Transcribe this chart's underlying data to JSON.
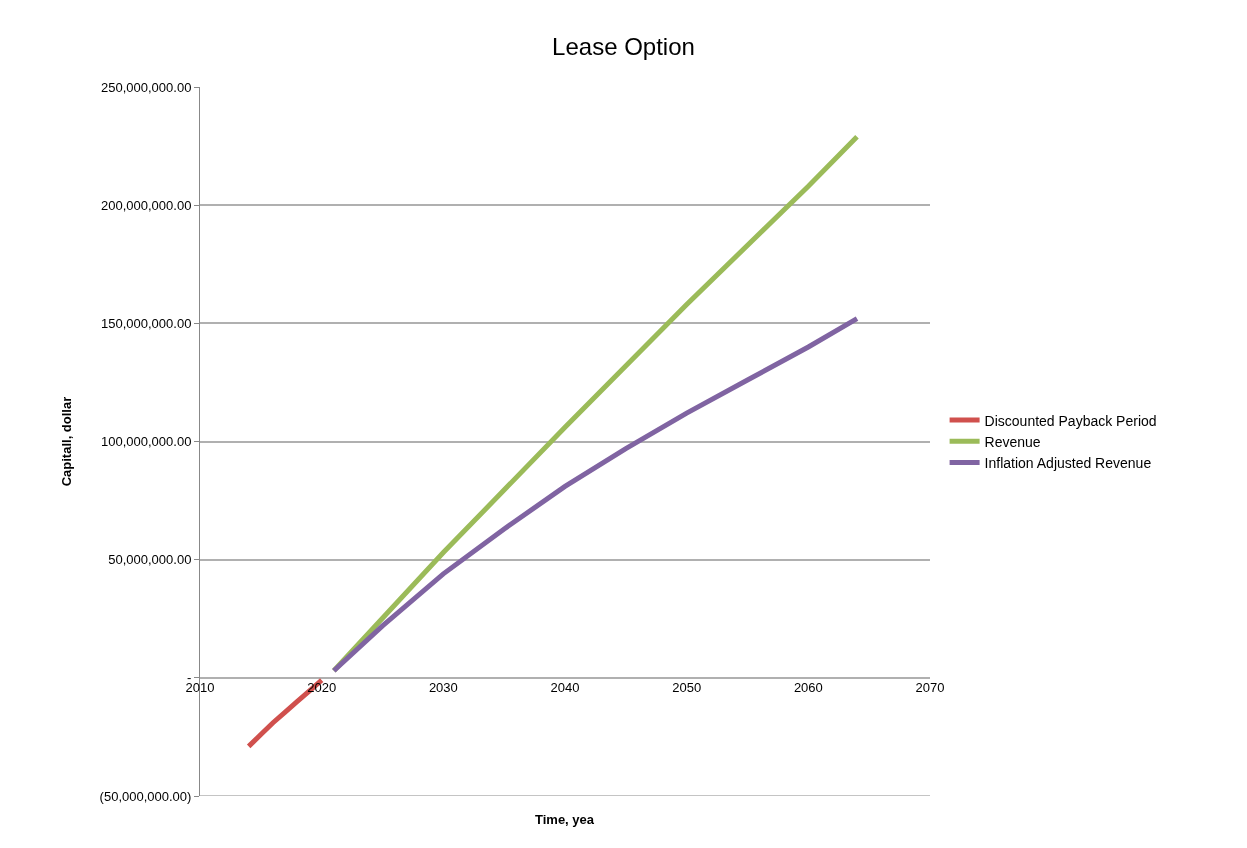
{
  "chart_data": {
    "type": "line",
    "title": "Lease Option",
    "xlabel": "Time, yea",
    "ylabel": "Capitall, dollar",
    "xlim": [
      2010,
      2070
    ],
    "xticks": [
      2010,
      2020,
      2030,
      2040,
      2050,
      2060,
      2070
    ],
    "ylim": [
      -50000000,
      250000000
    ],
    "yticks": [
      {
        "value": -50000000,
        "label": "(50,000,000.00)"
      },
      {
        "value": 0,
        "label": "-"
      },
      {
        "value": 50000000,
        "label": "50,000,000.00"
      },
      {
        "value": 100000000,
        "label": "100,000,000.00"
      },
      {
        "value": 150000000,
        "label": "150,000,000.00"
      },
      {
        "value": 200000000,
        "label": "200,000,000.00"
      },
      {
        "value": 250000000,
        "label": "250,000,000.00"
      }
    ],
    "grid": "y",
    "legend": "right",
    "marker": "none",
    "line_style": "solid",
    "series": [
      {
        "name": "Discounted Payback Period",
        "color": "#d0504d",
        "x": [
          2014,
          2015,
          2016,
          2017,
          2018,
          2019,
          2020
        ],
        "values": [
          -29000000,
          -24000000,
          -19000000,
          -14500000,
          -10000000,
          -5500000,
          -1000000
        ]
      },
      {
        "name": "Revenue",
        "color": "#9bbb59",
        "x": [
          2021,
          2030,
          2040,
          2050,
          2060,
          2064
        ],
        "values": [
          3000000,
          53000000,
          106000000,
          158000000,
          208000000,
          229000000
        ]
      },
      {
        "name": "Inflation Adjusted Revenue",
        "color": "#8064a2",
        "x": [
          2021,
          2025,
          2030,
          2035,
          2040,
          2045,
          2050,
          2055,
          2060,
          2064
        ],
        "values": [
          3000000,
          22000000,
          44000000,
          63000000,
          81000000,
          97000000,
          112000000,
          126000000,
          140000000,
          152000000
        ]
      }
    ]
  }
}
